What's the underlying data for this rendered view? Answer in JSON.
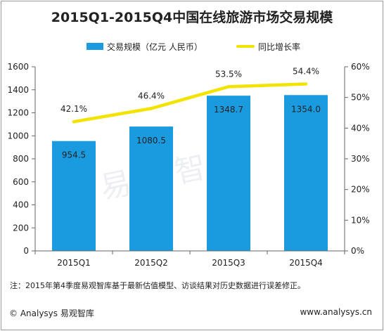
{
  "title": "2015Q1-2015Q4中国在线旅游市场交易规模",
  "watermark": "易观智库",
  "note": "注：2015年第4季度易观智库基于最新估值模型、访谈结果对历史数据进行误差修正。",
  "footer": {
    "left": "© Analysys 易观智库",
    "right": "www.analysys.cn"
  },
  "colors": {
    "bar": "#1a9be0",
    "line": "#f2e400",
    "axis": "#666666"
  },
  "chart_data": {
    "type": "bar",
    "categories": [
      "2015Q1",
      "2015Q2",
      "2015Q3",
      "2015Q4"
    ],
    "series": [
      {
        "name": "交易规模（亿元 人民币）",
        "type": "bar",
        "axis": "left",
        "values": [
          954.5,
          1080.5,
          1348.7,
          1354.0
        ],
        "labels": [
          "954.5",
          "1080.5",
          "1348.7",
          "1354.0"
        ]
      },
      {
        "name": "同比增长率",
        "type": "line",
        "axis": "right",
        "values": [
          42.1,
          46.4,
          53.5,
          54.4
        ],
        "labels": [
          "42.1%",
          "46.4%",
          "53.5%",
          "54.4%"
        ]
      }
    ],
    "y_left": {
      "min": 0,
      "max": 1600,
      "ticks": [
        "0",
        "200",
        "400",
        "600",
        "800",
        "1000",
        "1200",
        "1400",
        "1600"
      ]
    },
    "y_right": {
      "min": 0,
      "max": 60,
      "ticks": [
        "0%",
        "10%",
        "20%",
        "30%",
        "40%",
        "50%",
        "60%"
      ]
    },
    "legend_position": "top",
    "grid": false
  }
}
